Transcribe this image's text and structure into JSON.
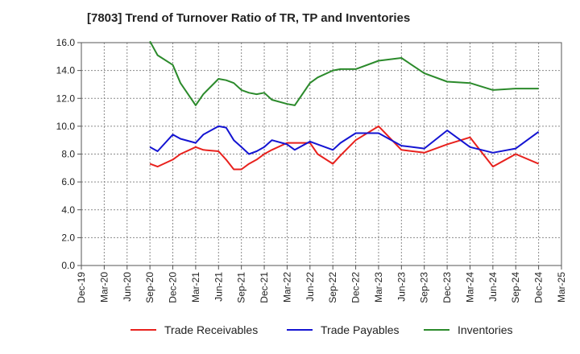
{
  "chart_data": {
    "type": "line",
    "title": "[7803]  Trend of Turnover Ratio of TR, TP and Inventories",
    "xlabel": "",
    "ylabel": "",
    "ylim": [
      0,
      16
    ],
    "yticks": [
      "0.0",
      "2.0",
      "4.0",
      "6.0",
      "8.0",
      "10.0",
      "12.0",
      "14.0",
      "16.0"
    ],
    "ytick_values": [
      0,
      2,
      4,
      6,
      8,
      10,
      12,
      14,
      16
    ],
    "xticks": [
      "Dec-19",
      "Mar-20",
      "Jun-20",
      "Sep-20",
      "Dec-20",
      "Mar-21",
      "Jun-21",
      "Sep-21",
      "Dec-21",
      "Mar-22",
      "Jun-22",
      "Sep-22",
      "Dec-22",
      "Mar-23",
      "Jun-23",
      "Sep-23",
      "Dec-23",
      "Mar-24",
      "Jun-24",
      "Sep-24",
      "Dec-24",
      "Mar-25"
    ],
    "grid": true,
    "legend_position": "bottom",
    "x": [
      "Sep-20",
      "Oct-20",
      "Dec-20",
      "Jan-21",
      "Mar-21",
      "Apr-21",
      "Jun-21",
      "Jul-21",
      "Aug-21",
      "Sep-21",
      "Oct-21",
      "Nov-21",
      "Dec-21",
      "Jan-22",
      "Mar-22",
      "Apr-22",
      "Jun-22",
      "Jul-22",
      "Sep-22",
      "Oct-22",
      "Dec-22",
      "Mar-23",
      "Jun-23",
      "Sep-23",
      "Dec-23",
      "Mar-24",
      "Jun-24",
      "Sep-24",
      "Dec-24"
    ],
    "x_month_index": [
      9,
      10,
      12,
      13,
      15,
      16,
      18,
      19,
      20,
      21,
      22,
      23,
      24,
      25,
      27,
      28,
      30,
      31,
      33,
      34,
      36,
      39,
      42,
      45,
      48,
      51,
      54,
      57,
      60
    ],
    "series": [
      {
        "name": "Trade Receivables",
        "color": "#e8211d",
        "values": [
          7.3,
          7.1,
          7.6,
          8.0,
          8.5,
          8.3,
          8.2,
          7.6,
          6.9,
          6.9,
          7.3,
          7.6,
          8.0,
          8.3,
          8.8,
          8.8,
          8.8,
          8.0,
          7.3,
          7.9,
          9.0,
          10.0,
          8.3,
          8.1,
          8.7,
          9.2,
          7.1,
          8.0,
          7.3
        ]
      },
      {
        "name": "Trade Payables",
        "color": "#1414d2",
        "values": [
          8.5,
          8.2,
          9.4,
          9.1,
          8.8,
          9.4,
          10.0,
          9.9,
          9.0,
          8.5,
          8.0,
          8.2,
          8.5,
          9.0,
          8.7,
          8.3,
          8.9,
          8.7,
          8.3,
          8.8,
          9.5,
          9.5,
          8.6,
          8.4,
          9.7,
          8.5,
          8.1,
          8.4,
          9.6
        ]
      },
      {
        "name": "Inventories",
        "color": "#2b8a2b",
        "values": [
          16.1,
          15.1,
          14.4,
          13.1,
          11.5,
          12.3,
          13.4,
          13.3,
          13.1,
          12.6,
          12.4,
          12.3,
          12.4,
          11.9,
          11.6,
          11.5,
          13.1,
          13.5,
          14.0,
          14.1,
          14.1,
          14.7,
          14.9,
          13.8,
          13.2,
          13.1,
          12.6,
          12.7,
          12.7
        ]
      }
    ]
  }
}
